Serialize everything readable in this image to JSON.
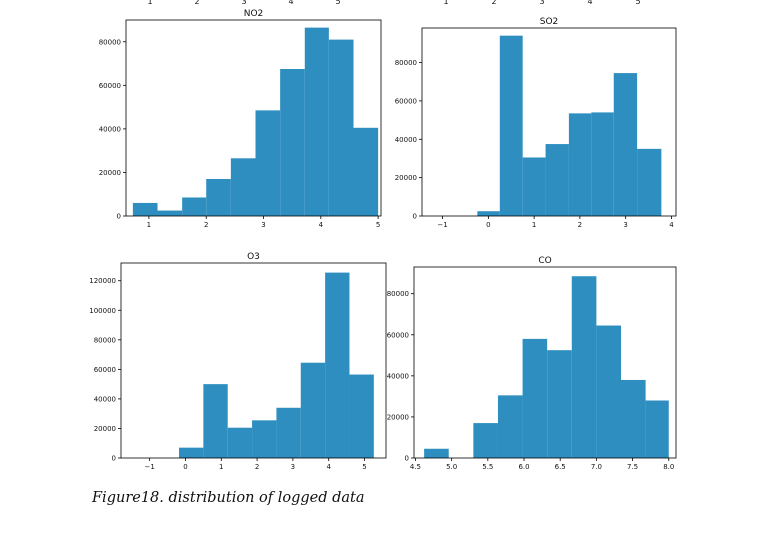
{
  "caption": "Figure18. distribution of logged data",
  "top_cut_tick_labels": {
    "left": [
      "1",
      "2",
      "3",
      "4",
      "5"
    ],
    "right": [
      "1",
      "2",
      "3",
      "4",
      "5"
    ]
  },
  "style": {
    "bar_color": "#2e8ec0",
    "axis_color": "#000000"
  },
  "chart_data": [
    {
      "type": "bar",
      "title": "NO2",
      "xlim": [
        0.6,
        5.05
      ],
      "ylim": [
        0,
        90000
      ],
      "xticks": [
        1,
        2,
        3,
        4,
        5
      ],
      "yticks": [
        0,
        20000,
        40000,
        60000,
        80000
      ],
      "grid": false,
      "bins": [
        [
          0.72,
          1.15
        ],
        [
          1.15,
          1.58
        ],
        [
          1.58,
          2.0
        ],
        [
          2.0,
          2.43
        ],
        [
          2.43,
          2.86
        ],
        [
          2.86,
          3.29
        ],
        [
          3.29,
          3.72
        ],
        [
          3.72,
          4.14
        ],
        [
          4.14,
          4.57
        ],
        [
          4.57,
          5.0
        ]
      ],
      "values": [
        6000,
        2500,
        8500,
        17000,
        26500,
        48500,
        67500,
        86500,
        81000,
        40500
      ]
    },
    {
      "type": "bar",
      "title": "SO2",
      "xlim": [
        -1.45,
        4.1
      ],
      "ylim": [
        0,
        98000
      ],
      "xticks": [
        -1,
        0,
        1,
        2,
        3,
        4
      ],
      "yticks": [
        0,
        20000,
        40000,
        60000,
        80000
      ],
      "grid": false,
      "bins": [
        [
          -0.24,
          0.25
        ],
        [
          0.25,
          0.75
        ],
        [
          0.75,
          1.25
        ],
        [
          1.25,
          1.76
        ],
        [
          1.76,
          2.25
        ],
        [
          2.25,
          2.74
        ],
        [
          2.74,
          3.25
        ],
        [
          3.25,
          3.78
        ]
      ],
      "values": [
        2500,
        94000,
        30500,
        37500,
        53500,
        54000,
        74500,
        35000
      ]
    },
    {
      "type": "bar",
      "title": "O3",
      "xlim": [
        -1.8,
        5.6
      ],
      "ylim": [
        0,
        132000
      ],
      "xticks": [
        -1,
        0,
        1,
        2,
        3,
        4,
        5
      ],
      "yticks": [
        0,
        20000,
        40000,
        60000,
        80000,
        100000,
        120000
      ],
      "grid": false,
      "bins": [
        [
          -0.18,
          0.5
        ],
        [
          0.5,
          1.18
        ],
        [
          1.18,
          1.86
        ],
        [
          1.86,
          2.54
        ],
        [
          2.54,
          3.22
        ],
        [
          3.22,
          3.9
        ],
        [
          3.9,
          4.58
        ],
        [
          4.58,
          5.26
        ]
      ],
      "values": [
        7000,
        50000,
        20500,
        25500,
        34000,
        64500,
        125500,
        56500
      ]
    },
    {
      "type": "bar",
      "title": "CO",
      "xlim": [
        4.48,
        8.1
      ],
      "ylim": [
        0,
        93000
      ],
      "xticks": [
        4.5,
        5.0,
        5.5,
        6.0,
        6.5,
        7.0,
        7.5,
        8.0
      ],
      "xtick_labels": [
        "4.5",
        "5.0",
        "5.5",
        "6.0",
        "6.5",
        "7.0",
        "7.5",
        "8.0"
      ],
      "yticks": [
        0,
        20000,
        40000,
        60000,
        80000
      ],
      "grid": false,
      "bins": [
        [
          4.62,
          4.96
        ],
        [
          4.96,
          5.3
        ],
        [
          5.3,
          5.64
        ],
        [
          5.64,
          5.98
        ],
        [
          5.98,
          6.32
        ],
        [
          6.32,
          6.66
        ],
        [
          6.66,
          7.0
        ],
        [
          7.0,
          7.34
        ],
        [
          7.34,
          7.68
        ],
        [
          7.68,
          8.0
        ]
      ],
      "values": [
        4500,
        0,
        17000,
        30500,
        58000,
        52500,
        88500,
        64500,
        38000,
        28000
      ]
    }
  ]
}
